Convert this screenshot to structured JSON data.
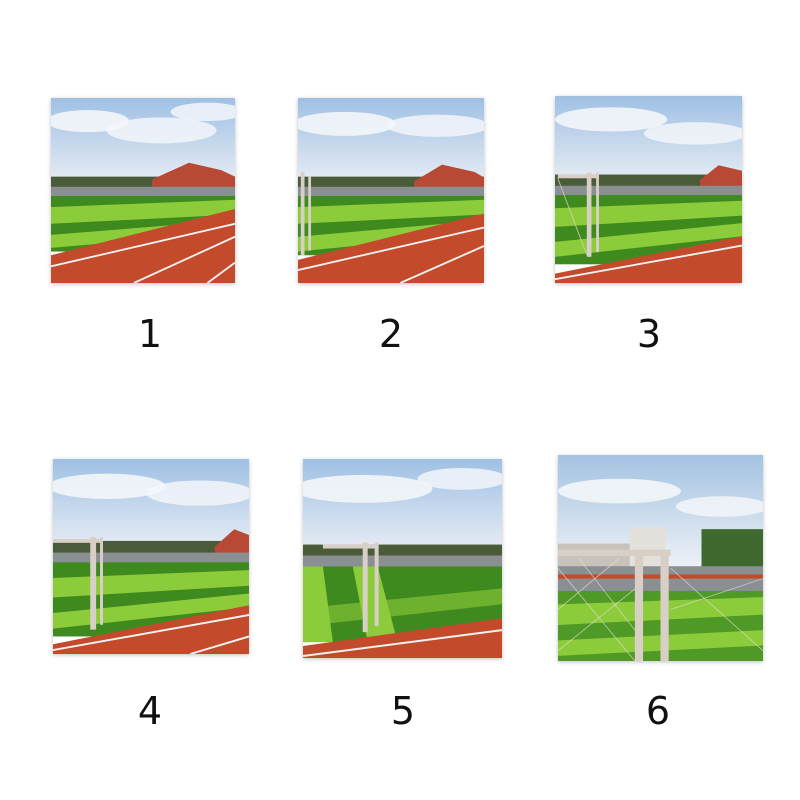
{
  "panels": [
    {
      "label": "1",
      "scene": "stadium-track-field-no-goal"
    },
    {
      "label": "2",
      "scene": "stadium-track-field-goal-left-edge"
    },
    {
      "label": "3",
      "scene": "stadium-track-field-goal-left"
    },
    {
      "label": "4",
      "scene": "stadium-track-field-goal-near-left"
    },
    {
      "label": "5",
      "scene": "stadium-track-field-goal-center-left"
    },
    {
      "label": "6",
      "scene": "goal-net-closeup-stands"
    }
  ],
  "colors": {
    "sky": "#a9c8e6",
    "cloud": "#eef2f7",
    "field_light": "#8ccb3a",
    "field_dark": "#3f8a1f",
    "track": "#c44a2c",
    "lines": "#f2f2f2",
    "goal": "#d8cfc6"
  }
}
